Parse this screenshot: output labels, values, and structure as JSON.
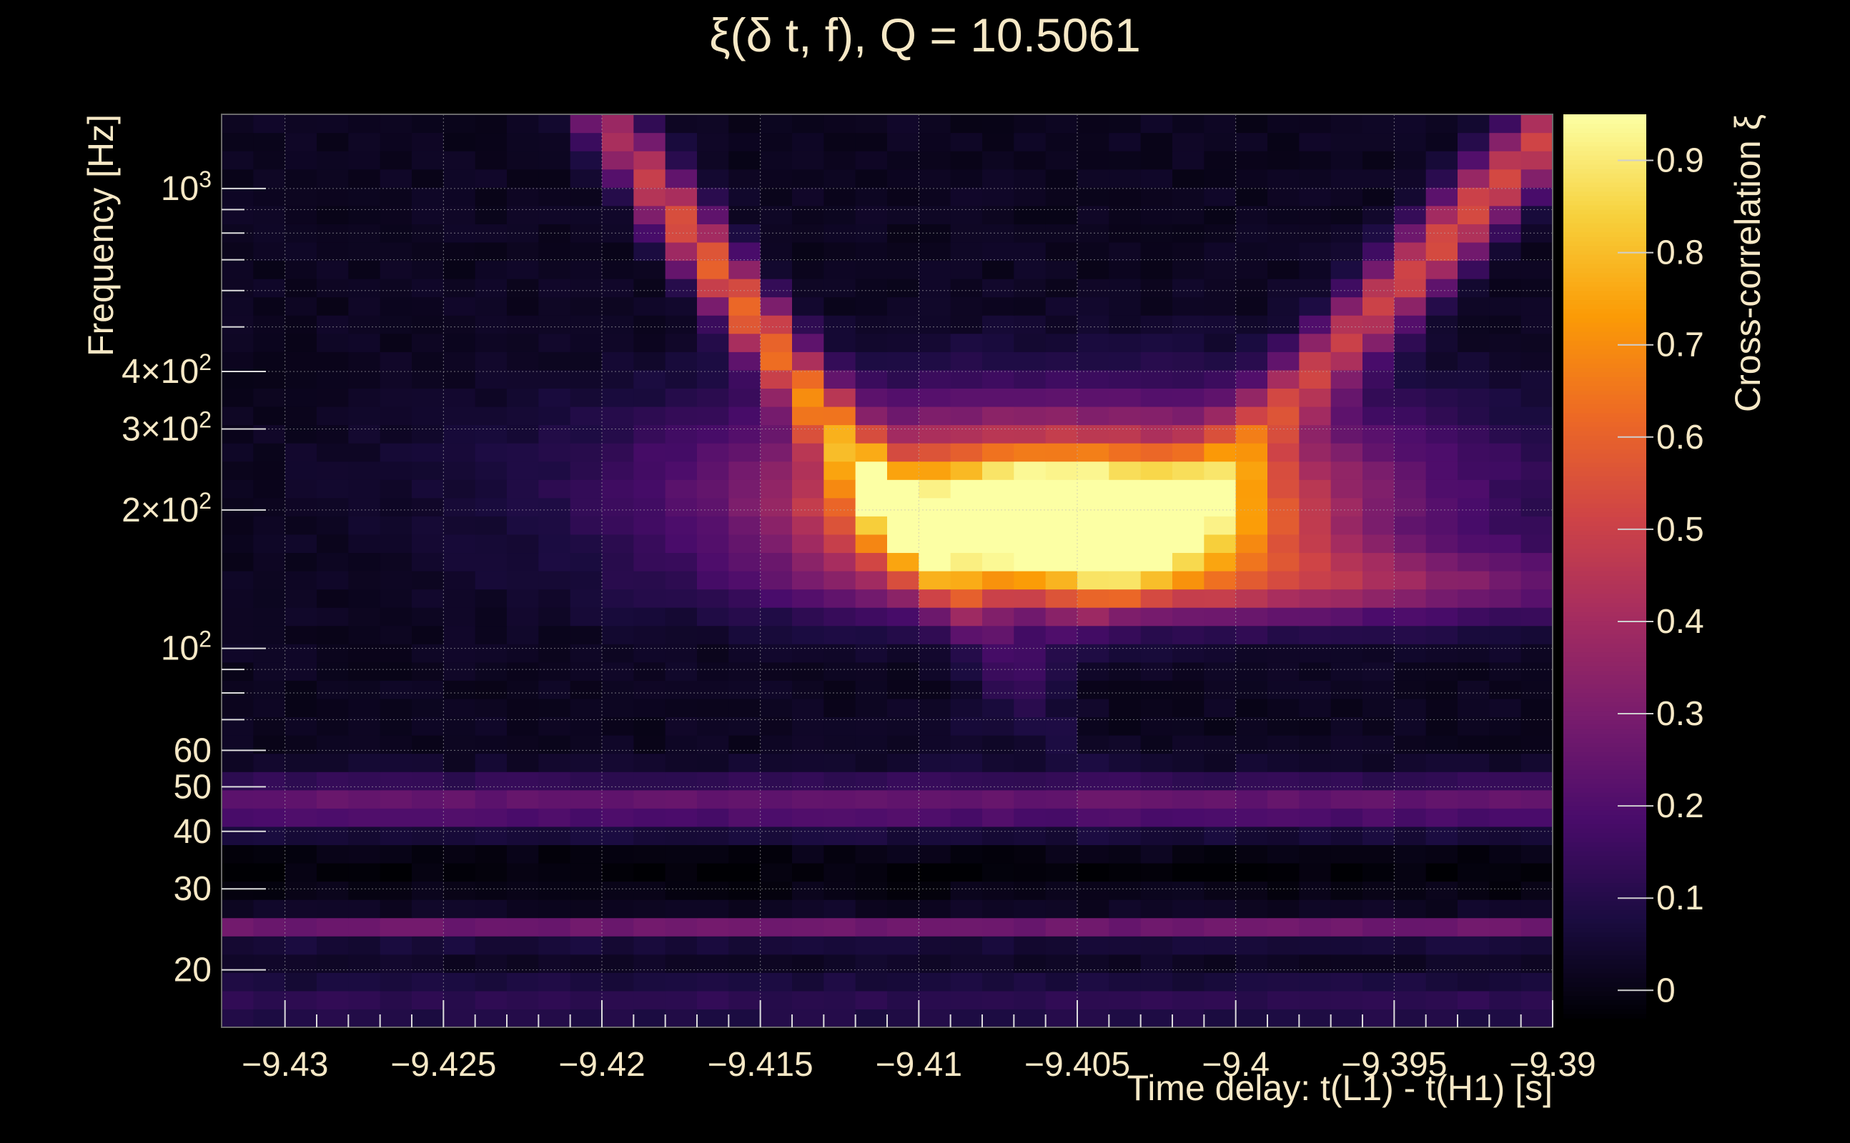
{
  "chart_data": {
    "type": "heatmap",
    "title": "ξ(δ t, f), Q = 10.5061",
    "xlabel": "Time delay: t(L1) - t(H1) [s]",
    "ylabel": "Frequency [Hz]",
    "zlabel": "Cross-correlation ξ",
    "xlim": [
      -9.432,
      -9.39
    ],
    "ylim": [
      15,
      1450
    ],
    "yscale": "log",
    "zlim": [
      -0.03,
      0.95
    ],
    "grid": true,
    "x_ticks": [
      {
        "value": -9.43,
        "label": "−9.43"
      },
      {
        "value": -9.425,
        "label": "−9.425"
      },
      {
        "value": -9.42,
        "label": "−9.42"
      },
      {
        "value": -9.415,
        "label": "−9.415"
      },
      {
        "value": -9.41,
        "label": "−9.41"
      },
      {
        "value": -9.405,
        "label": "−9.405"
      },
      {
        "value": -9.4,
        "label": "−9.4"
      },
      {
        "value": -9.395,
        "label": "−9.395"
      },
      {
        "value": -9.39,
        "label": "−9.39"
      }
    ],
    "y_ticks": [
      {
        "value": 20,
        "base": "20",
        "exp": ""
      },
      {
        "value": 30,
        "base": "30",
        "exp": ""
      },
      {
        "value": 40,
        "base": "40",
        "exp": ""
      },
      {
        "value": 50,
        "base": "50",
        "exp": ""
      },
      {
        "value": 60,
        "base": "60",
        "exp": ""
      },
      {
        "value": 100,
        "base": "10",
        "exp": "2"
      },
      {
        "value": 200,
        "base": "2×10",
        "exp": "2"
      },
      {
        "value": 300,
        "base": "3×10",
        "exp": "2"
      },
      {
        "value": 400,
        "base": "4×10",
        "exp": "2"
      },
      {
        "value": 1000,
        "base": "10",
        "exp": "3"
      }
    ],
    "z_ticks": [
      {
        "value": 0,
        "label": "0"
      },
      {
        "value": 0.1,
        "label": "0.1"
      },
      {
        "value": 0.2,
        "label": "0.2"
      },
      {
        "value": 0.3,
        "label": "0.3"
      },
      {
        "value": 0.4,
        "label": "0.4"
      },
      {
        "value": 0.5,
        "label": "0.5"
      },
      {
        "value": 0.6,
        "label": "0.6"
      },
      {
        "value": 0.7,
        "label": "0.7"
      },
      {
        "value": 0.8,
        "label": "0.8"
      },
      {
        "value": 0.9,
        "label": "0.9"
      }
    ],
    "colormap": [
      "#000004",
      "#1b0c41",
      "#4a0c6b",
      "#781c6d",
      "#a52c60",
      "#cf4446",
      "#ed6925",
      "#fb9b06",
      "#f7d13d",
      "#fcffa4"
    ],
    "peak": {
      "x": -9.4055,
      "f": 190,
      "value": 0.95
    }
  }
}
